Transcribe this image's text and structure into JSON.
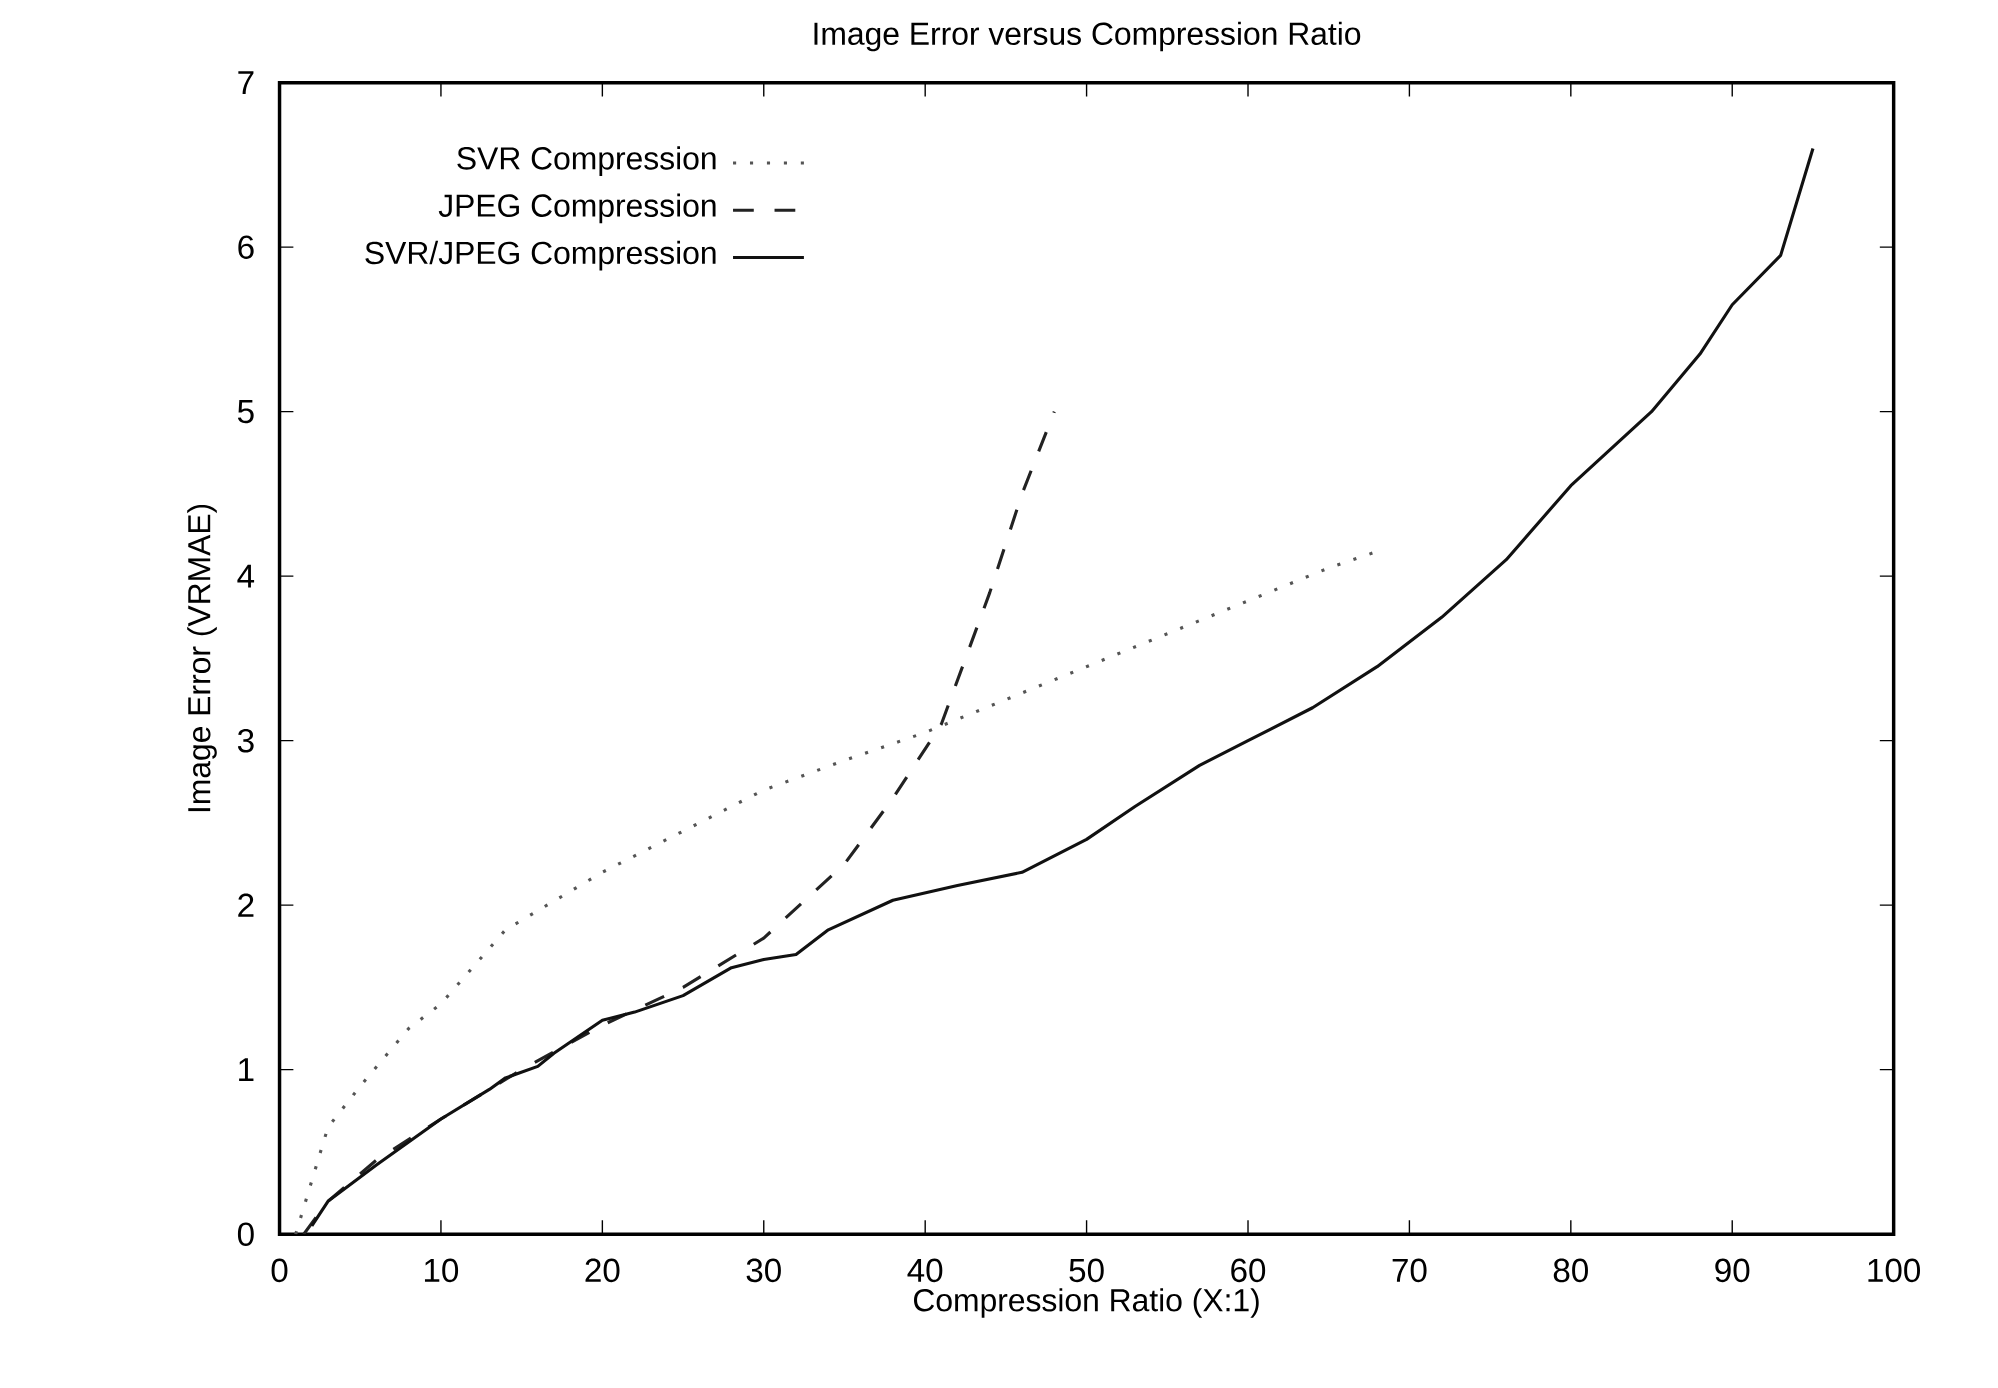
{
  "chart_data": {
    "type": "line",
    "title": "Image Error versus Compression Ratio",
    "xlabel": "Compression Ratio (X:1)",
    "ylabel": "Image Error (VRMAE)",
    "xlim": [
      0,
      100
    ],
    "ylim": [
      0,
      7
    ],
    "xticks": [
      0,
      10,
      20,
      30,
      40,
      50,
      60,
      70,
      80,
      90,
      100
    ],
    "yticks": [
      0,
      1,
      2,
      3,
      4,
      5,
      6,
      7
    ],
    "grid": false,
    "legend": "top left",
    "series": [
      {
        "name": "SVR Compression",
        "color": "#555555",
        "line_style": "dotted",
        "x": [
          1,
          3,
          5,
          8,
          10,
          14,
          20,
          25,
          30,
          35,
          40,
          45,
          50,
          55,
          60,
          65,
          68
        ],
        "values": [
          0,
          0.65,
          0.9,
          1.25,
          1.4,
          1.85,
          2.2,
          2.45,
          2.7,
          2.88,
          3.05,
          3.25,
          3.45,
          3.65,
          3.85,
          4.05,
          4.15
        ]
      },
      {
        "name": "JPEG Compression",
        "color": "#222222",
        "line_style": "dashed",
        "x": [
          1.5,
          3,
          6,
          10,
          15,
          20,
          25,
          30,
          35,
          38,
          41,
          44,
          46,
          48
        ],
        "values": [
          0,
          0.2,
          0.45,
          0.7,
          1.0,
          1.27,
          1.5,
          1.8,
          2.25,
          2.65,
          3.1,
          3.9,
          4.5,
          5.0
        ]
      },
      {
        "name": "SVR/JPEG Compression",
        "color": "#111111",
        "line_style": "solid",
        "x": [
          2,
          3,
          6,
          10,
          13,
          14,
          16,
          17,
          20,
          22,
          25,
          28,
          30,
          32,
          34,
          38,
          42,
          46,
          50,
          53,
          57,
          60,
          64,
          68,
          72,
          76,
          80,
          85,
          88,
          90,
          93,
          95
        ],
        "values": [
          0.05,
          0.2,
          0.42,
          0.7,
          0.88,
          0.95,
          1.02,
          1.1,
          1.3,
          1.35,
          1.45,
          1.62,
          1.67,
          1.7,
          1.85,
          2.03,
          2.12,
          2.2,
          2.4,
          2.6,
          2.85,
          3.0,
          3.2,
          3.45,
          3.75,
          4.1,
          4.55,
          5.0,
          5.35,
          5.65,
          5.95,
          6.6
        ]
      }
    ]
  }
}
